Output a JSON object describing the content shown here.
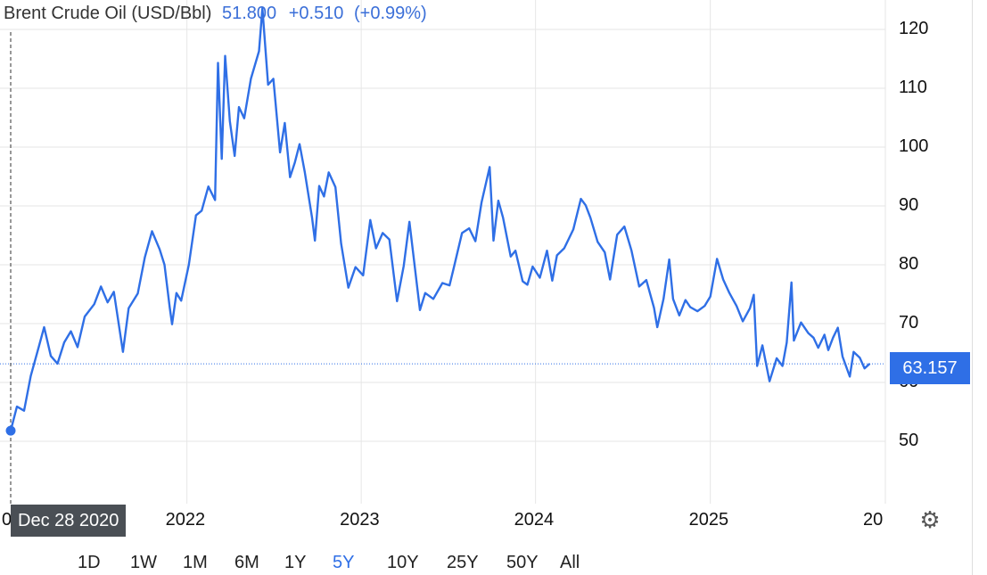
{
  "header": {
    "name": "Brent Crude Oil (USD/Bbl)",
    "price": "51.800",
    "change": "+0.510",
    "change_pct": "(+0.99%)"
  },
  "price_tag": "63.157",
  "hover_date": "Dec 28 2020",
  "x_edge_left": "0",
  "x_edge_right": "20",
  "range_buttons": [
    "1D",
    "1W",
    "1M",
    "6M",
    "1Y",
    "5Y",
    "10Y",
    "25Y",
    "50Y",
    "All"
  ],
  "active_range": "5Y",
  "icons": {
    "settings": "gear-icon"
  },
  "colors": {
    "line": "#2f6fe6",
    "accent": "#2f6fe6",
    "tooltip": "#4a4f55"
  },
  "chart_data": {
    "type": "line",
    "title": "Brent Crude Oil (USD/Bbl)",
    "xlabel": "",
    "ylabel": "",
    "x_range": [
      "2020-12-28",
      "2025-12-20"
    ],
    "ylim": [
      40,
      123
    ],
    "y_ticks": [
      50,
      60,
      70,
      80,
      90,
      100,
      110,
      120
    ],
    "y_tick_labels": [
      "50",
      "60",
      "70",
      "80",
      "90",
      "100",
      "110",
      "120"
    ],
    "x_ticks": [
      "2022-01-01",
      "2023-01-01",
      "2024-01-01",
      "2025-01-01"
    ],
    "x_tick_labels": [
      "2022",
      "2023",
      "2024",
      "2025"
    ],
    "grid": true,
    "last_value": 63.157,
    "series": [
      {
        "values": [
          [
            "2020-12-28",
            51.8
          ],
          [
            "2021-01-10",
            55.9
          ],
          [
            "2021-01-25",
            55.2
          ],
          [
            "2021-02-08",
            61.1
          ],
          [
            "2021-02-25",
            66.1
          ],
          [
            "2021-03-08",
            69.4
          ],
          [
            "2021-03-22",
            64.5
          ],
          [
            "2021-04-05",
            63.2
          ],
          [
            "2021-04-19",
            66.8
          ],
          [
            "2021-05-03",
            68.7
          ],
          [
            "2021-05-17",
            66.0
          ],
          [
            "2021-06-01",
            71.2
          ],
          [
            "2021-06-21",
            73.3
          ],
          [
            "2021-07-05",
            76.3
          ],
          [
            "2021-07-19",
            73.6
          ],
          [
            "2021-08-01",
            75.4
          ],
          [
            "2021-08-20",
            65.2
          ],
          [
            "2021-09-01",
            72.6
          ],
          [
            "2021-09-20",
            75.1
          ],
          [
            "2021-10-05",
            81.3
          ],
          [
            "2021-10-20",
            85.7
          ],
          [
            "2021-11-05",
            82.6
          ],
          [
            "2021-11-15",
            80.0
          ],
          [
            "2021-11-26",
            72.7
          ],
          [
            "2021-12-01",
            69.9
          ],
          [
            "2021-12-10",
            75.2
          ],
          [
            "2021-12-20",
            73.9
          ],
          [
            "2022-01-05",
            80.0
          ],
          [
            "2022-01-20",
            88.4
          ],
          [
            "2022-02-01",
            89.2
          ],
          [
            "2022-02-15",
            93.3
          ],
          [
            "2022-03-01",
            91.0
          ],
          [
            "2022-03-07",
            114.3
          ],
          [
            "2022-03-15",
            98.0
          ],
          [
            "2022-03-22",
            115.5
          ],
          [
            "2022-04-01",
            104.4
          ],
          [
            "2022-04-11",
            98.5
          ],
          [
            "2022-04-20",
            106.8
          ],
          [
            "2022-05-01",
            104.9
          ],
          [
            "2022-05-15",
            111.6
          ],
          [
            "2022-06-01",
            116.3
          ],
          [
            "2022-06-08",
            123.6
          ],
          [
            "2022-06-20",
            110.6
          ],
          [
            "2022-07-01",
            111.6
          ],
          [
            "2022-07-15",
            99.1
          ],
          [
            "2022-07-25",
            104.1
          ],
          [
            "2022-08-05",
            94.9
          ],
          [
            "2022-08-15",
            97.4
          ],
          [
            "2022-08-25",
            100.5
          ],
          [
            "2022-09-05",
            95.7
          ],
          [
            "2022-09-20",
            88.0
          ],
          [
            "2022-09-26",
            84.1
          ],
          [
            "2022-10-05",
            93.4
          ],
          [
            "2022-10-15",
            91.6
          ],
          [
            "2022-10-25",
            95.7
          ],
          [
            "2022-11-08",
            93.2
          ],
          [
            "2022-11-20",
            83.6
          ],
          [
            "2022-12-05",
            76.1
          ],
          [
            "2022-12-20",
            79.6
          ],
          [
            "2023-01-05",
            78.2
          ],
          [
            "2023-01-20",
            87.6
          ],
          [
            "2023-02-01",
            82.8
          ],
          [
            "2023-02-15",
            85.4
          ],
          [
            "2023-03-01",
            84.3
          ],
          [
            "2023-03-17",
            73.8
          ],
          [
            "2023-03-31",
            79.8
          ],
          [
            "2023-04-12",
            87.3
          ],
          [
            "2023-04-25",
            78.4
          ],
          [
            "2023-05-04",
            72.3
          ],
          [
            "2023-05-15",
            75.2
          ],
          [
            "2023-06-01",
            74.2
          ],
          [
            "2023-06-20",
            76.9
          ],
          [
            "2023-07-05",
            76.5
          ],
          [
            "2023-07-15",
            79.9
          ],
          [
            "2023-07-31",
            85.4
          ],
          [
            "2023-08-15",
            86.2
          ],
          [
            "2023-08-28",
            84.0
          ],
          [
            "2023-09-10",
            90.6
          ],
          [
            "2023-09-27",
            96.6
          ],
          [
            "2023-10-05",
            84.1
          ],
          [
            "2023-10-15",
            90.9
          ],
          [
            "2023-10-25",
            88.0
          ],
          [
            "2023-11-10",
            81.4
          ],
          [
            "2023-11-20",
            82.4
          ],
          [
            "2023-12-05",
            77.2
          ],
          [
            "2023-12-15",
            76.6
          ],
          [
            "2023-12-26",
            79.7
          ],
          [
            "2024-01-10",
            77.8
          ],
          [
            "2024-01-25",
            82.4
          ],
          [
            "2024-02-05",
            77.3
          ],
          [
            "2024-02-15",
            81.6
          ],
          [
            "2024-03-01",
            82.8
          ],
          [
            "2024-03-20",
            86.0
          ],
          [
            "2024-04-05",
            91.2
          ],
          [
            "2024-04-15",
            90.1
          ],
          [
            "2024-04-25",
            88.0
          ],
          [
            "2024-05-10",
            83.9
          ],
          [
            "2024-05-25",
            82.1
          ],
          [
            "2024-06-05",
            77.5
          ],
          [
            "2024-06-20",
            85.1
          ],
          [
            "2024-07-05",
            86.5
          ],
          [
            "2024-07-20",
            82.4
          ],
          [
            "2024-08-05",
            76.3
          ],
          [
            "2024-08-20",
            77.4
          ],
          [
            "2024-09-05",
            72.7
          ],
          [
            "2024-09-12",
            69.4
          ],
          [
            "2024-09-25",
            74.2
          ],
          [
            "2024-10-07",
            80.9
          ],
          [
            "2024-10-15",
            74.2
          ],
          [
            "2024-10-28",
            71.4
          ],
          [
            "2024-11-10",
            74.0
          ],
          [
            "2024-11-20",
            72.8
          ],
          [
            "2024-12-05",
            72.1
          ],
          [
            "2024-12-20",
            73.0
          ],
          [
            "2025-01-01",
            74.6
          ],
          [
            "2025-01-15",
            81.0
          ],
          [
            "2025-01-28",
            77.5
          ],
          [
            "2025-02-10",
            75.2
          ],
          [
            "2025-02-25",
            73.0
          ],
          [
            "2025-03-10",
            70.4
          ],
          [
            "2025-03-25",
            72.6
          ],
          [
            "2025-04-02",
            74.9
          ],
          [
            "2025-04-09",
            62.8
          ],
          [
            "2025-04-20",
            66.3
          ],
          [
            "2025-05-05",
            60.2
          ],
          [
            "2025-05-20",
            64.1
          ],
          [
            "2025-06-01",
            62.8
          ],
          [
            "2025-06-10",
            66.8
          ],
          [
            "2025-06-20",
            77.0
          ],
          [
            "2025-06-25",
            67.1
          ],
          [
            "2025-07-10",
            70.2
          ],
          [
            "2025-07-25",
            68.4
          ],
          [
            "2025-08-05",
            67.6
          ],
          [
            "2025-08-15",
            65.9
          ],
          [
            "2025-08-28",
            68.1
          ],
          [
            "2025-09-05",
            65.5
          ],
          [
            "2025-09-15",
            67.6
          ],
          [
            "2025-09-25",
            69.3
          ],
          [
            "2025-10-05",
            64.4
          ],
          [
            "2025-10-20",
            61.0
          ],
          [
            "2025-10-28",
            65.2
          ],
          [
            "2025-11-10",
            64.2
          ],
          [
            "2025-11-20",
            62.4
          ],
          [
            "2025-12-01",
            63.2
          ]
        ]
      }
    ]
  }
}
